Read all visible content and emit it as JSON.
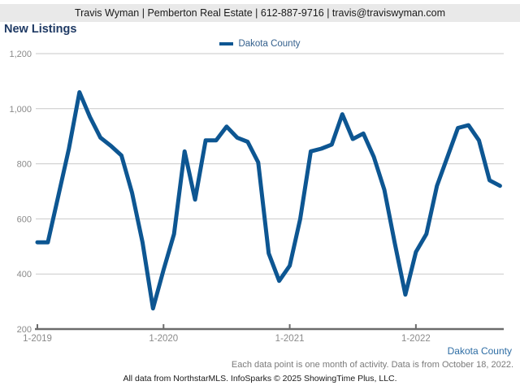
{
  "header": {
    "contact_line": "Travis Wyman | Pemberton Real Estate | 612-887-9716 | travis@traviswyman.com"
  },
  "title": "New Listings",
  "legend": {
    "label": "Dakota County"
  },
  "chart_data": {
    "type": "line",
    "title": "New Listings",
    "xlabel": "",
    "ylabel": "",
    "ylim": [
      200,
      1200
    ],
    "ytick_interval": 200,
    "ytick_labels": [
      "200",
      "400",
      "600",
      "800",
      "1,000",
      "1,200"
    ],
    "grid": "horizontal",
    "legend_position": "top-center",
    "line_color": "#0d5692",
    "x_tick_labels": [
      {
        "label": "1-2019",
        "month_index": 0
      },
      {
        "label": "1-2020",
        "month_index": 12
      },
      {
        "label": "1-2021",
        "month_index": 24
      },
      {
        "label": "1-2022",
        "month_index": 36
      }
    ],
    "series": [
      {
        "name": "Dakota County",
        "months": [
          "1-2019",
          "2-2019",
          "3-2019",
          "4-2019",
          "5-2019",
          "6-2019",
          "7-2019",
          "8-2019",
          "9-2019",
          "10-2019",
          "11-2019",
          "12-2019",
          "1-2020",
          "2-2020",
          "3-2020",
          "4-2020",
          "5-2020",
          "6-2020",
          "7-2020",
          "8-2020",
          "9-2020",
          "10-2020",
          "11-2020",
          "12-2020",
          "1-2021",
          "2-2021",
          "3-2021",
          "4-2021",
          "5-2021",
          "6-2021",
          "7-2021",
          "8-2021",
          "9-2021",
          "10-2021",
          "11-2021",
          "12-2021",
          "1-2022",
          "2-2022",
          "3-2022",
          "4-2022",
          "5-2022",
          "6-2022",
          "7-2022",
          "8-2022",
          "9-2022"
        ],
        "values": [
          515,
          515,
          685,
          855,
          1060,
          970,
          895,
          865,
          830,
          695,
          515,
          275,
          415,
          545,
          845,
          670,
          885,
          885,
          935,
          895,
          880,
          805,
          475,
          375,
          430,
          600,
          845,
          855,
          870,
          980,
          890,
          910,
          825,
          705,
          510,
          325,
          480,
          545,
          720,
          825,
          930,
          940,
          885,
          740,
          720
        ]
      }
    ]
  },
  "footer": {
    "series_label": "Dakota County",
    "note": "Each data point is one month of activity. Data is from October 18, 2022.",
    "attribution": "All data from NorthstarMLS. InfoSparks © 2025 ShowingTime Plus, LLC."
  },
  "colors": {
    "line": "#0d5692",
    "title_text": "#1f3a64",
    "legend_text": "#34608d",
    "footer_county_text": "#2e6da4",
    "header_background": "#e9e9e9",
    "gridline": "#c9c9c9",
    "axis_line": "#6b6b6b",
    "axis_label_text": "#8a8a8a"
  }
}
